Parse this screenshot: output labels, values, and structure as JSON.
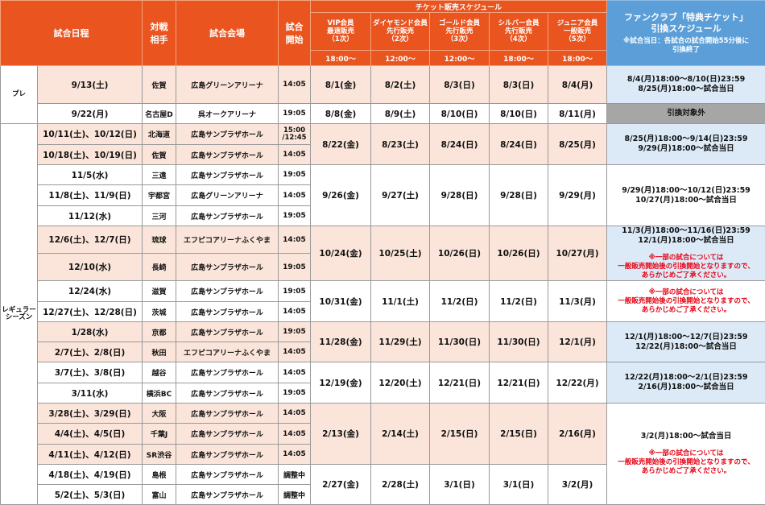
{
  "header": {
    "match_date": "試合日程",
    "opponent": "対戦\n相手",
    "venue": "試合会場",
    "start": "試合\n開始",
    "sale_schedule": "チケット販売スケジュール",
    "tiers": [
      {
        "name": "VIP会員\n最速販売\n（1次）",
        "time": "18:00〜"
      },
      {
        "name": "ダイヤモンド会員\n先行販売\n（2次）",
        "time": "12:00〜"
      },
      {
        "name": "ゴールド会員\n先行販売\n（3次）",
        "time": "12:00〜"
      },
      {
        "name": "シルバー会員\n先行販売\n（4次）",
        "time": "18:00〜"
      },
      {
        "name": "ジュニア会員\n一般販売\n（5次）",
        "time": "18:00〜"
      }
    ],
    "fanclub_title": "ファンクラブ「特典チケット」\n引換スケジュール",
    "fanclub_note": "※試合当日：各試合の試合開始55分後に\n引換終了"
  },
  "categories": {
    "pre": "プレ",
    "regular": "レギュラー\nシーズン"
  },
  "games": [
    {
      "date": "9/13(土)",
      "opp": "佐賀",
      "venue": "広島グリーンアリーナ",
      "start": "14:05"
    },
    {
      "date": "9/22(月)",
      "opp": "名古屋D",
      "venue": "呉オークアリーナ",
      "start": "19:05"
    },
    {
      "date": "10/11(土)、10/12(日)",
      "opp": "北海道",
      "venue": "広島サンプラザホール",
      "start": "15:00\n/12:45"
    },
    {
      "date": "10/18(土)、10/19(日)",
      "opp": "佐賀",
      "venue": "広島サンプラザホール",
      "start": "14:05"
    },
    {
      "date": "11/5(水)",
      "opp": "三遠",
      "venue": "広島サンプラザホール",
      "start": "19:05"
    },
    {
      "date": "11/8(土)、11/9(日)",
      "opp": "宇都宮",
      "venue": "広島グリーンアリーナ",
      "start": "14:05"
    },
    {
      "date": "11/12(水)",
      "opp": "三河",
      "venue": "広島サンプラザホール",
      "start": "19:05"
    },
    {
      "date": "12/6(土)、12/7(日)",
      "opp": "琉球",
      "venue": "エフピコアリーナふくやま",
      "start": "14:05"
    },
    {
      "date": "12/10(水)",
      "opp": "長崎",
      "venue": "広島サンプラザホール",
      "start": "19:05"
    },
    {
      "date": "12/24(水)",
      "opp": "滋賀",
      "venue": "広島サンプラザホール",
      "start": "19:05"
    },
    {
      "date": "12/27(土)、12/28(日)",
      "opp": "茨城",
      "venue": "広島サンプラザホール",
      "start": "14:05"
    },
    {
      "date": "1/28(水)",
      "opp": "京都",
      "venue": "広島サンプラザホール",
      "start": "19:05"
    },
    {
      "date": "2/7(土)、2/8(日)",
      "opp": "秋田",
      "venue": "エフピコアリーナふくやま",
      "start": "14:05"
    },
    {
      "date": "3/7(土)、3/8(日)",
      "opp": "越谷",
      "venue": "広島サンプラザホール",
      "start": "14:05"
    },
    {
      "date": "3/11(水)",
      "opp": "横浜BC",
      "venue": "広島サンプラザホール",
      "start": "19:05"
    },
    {
      "date": "3/28(土)、3/29(日)",
      "opp": "大阪",
      "venue": "広島サンプラザホール",
      "start": "14:05"
    },
    {
      "date": "4/4(土)、4/5(日)",
      "opp": "千葉J",
      "venue": "広島サンプラザホール",
      "start": "14:05"
    },
    {
      "date": "4/11(土)、4/12(日)",
      "opp": "SR渋谷",
      "venue": "広島サンプラザホール",
      "start": "14:05"
    },
    {
      "date": "4/18(土)、4/19(日)",
      "opp": "島根",
      "venue": "広島サンプラザホール",
      "start": "調整中"
    },
    {
      "date": "5/2(土)、5/3(日)",
      "opp": "富山",
      "venue": "広島サンプラザホール",
      "start": "調整中"
    }
  ],
  "sales": [
    [
      "8/1(金)",
      "8/2(土)",
      "8/3(日)",
      "8/3(日)",
      "8/4(月)"
    ],
    [
      "8/8(金)",
      "8/9(土)",
      "8/10(日)",
      "8/10(日)",
      "8/11(月)"
    ],
    [
      "8/22(金)",
      "8/23(土)",
      "8/24(日)",
      "8/24(日)",
      "8/25(月)"
    ],
    [
      "9/26(金)",
      "9/27(土)",
      "9/28(日)",
      "9/28(日)",
      "9/29(月)"
    ],
    [
      "10/24(金)",
      "10/25(土)",
      "10/26(日)",
      "10/26(日)",
      "10/27(月)"
    ],
    [
      "10/31(金)",
      "11/1(土)",
      "11/2(日)",
      "11/2(日)",
      "11/3(月)"
    ],
    [
      "11/28(金)",
      "11/29(土)",
      "11/30(日)",
      "11/30(日)",
      "12/1(月)"
    ],
    [
      "12/19(金)",
      "12/20(土)",
      "12/21(日)",
      "12/21(日)",
      "12/22(月)"
    ],
    [
      "2/13(金)",
      "2/14(土)",
      "2/15(日)",
      "2/15(日)",
      "2/16(月)"
    ],
    [
      "2/27(金)",
      "2/28(土)",
      "3/1(日)",
      "3/1(日)",
      "3/2(月)"
    ]
  ],
  "exchange": [
    "8/4(月)18:00〜8/10(日)23:59\n8/25(月)18:00〜試合当日",
    "引換対象外",
    "8/25(月)18:00〜9/14(日)23:59\n9/29(月)18:00〜試合当日",
    "9/29(月)18:00〜10/12(日)23:59\n10/27(月)18:00〜試合当日",
    "11/3(月)18:00〜11/16(日)23:59\n12/1(月)18:00〜試合当日",
    "12/1(月)18:00〜12/7(日)23:59\n12/22(月)18:00〜試合当日",
    "12/22(月)18:00〜2/1(日)23:59\n2/16(月)18:00〜試合当日",
    "3/2(月)18:00〜試合当日"
  ],
  "exchange_warning": "※一部の試合については\n一般販売開始後の引換開始となりますので、\nあらかじめご了承ください。",
  "colors": {
    "orange": "#e9541f",
    "blue": "#5c9fd8",
    "pink": "#fbe5da",
    "light_blue": "#dceaf7",
    "gray": "#a6a6a6",
    "red": "#e60012"
  }
}
